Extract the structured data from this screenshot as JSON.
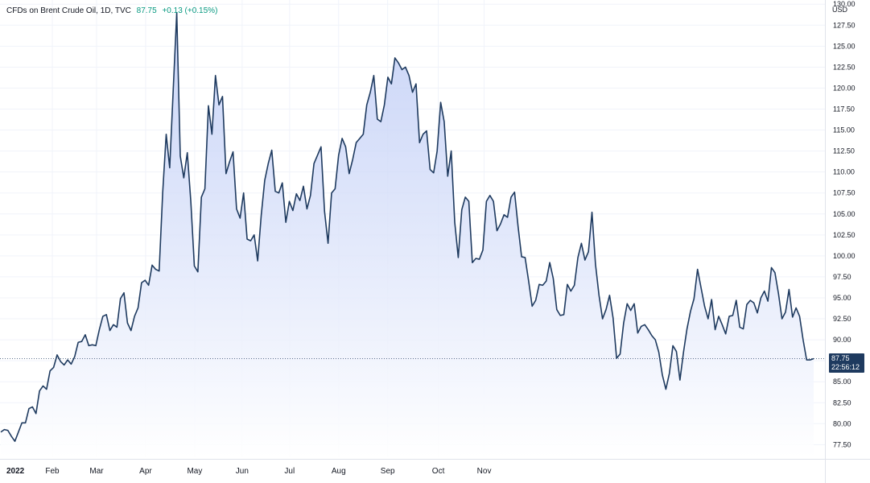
{
  "legend": {
    "symbol": "CFDs on Brent Crude Oil, 1D, TVC",
    "last": "87.75",
    "change": "+0.13 (+0.15%)"
  },
  "axis": {
    "currency": "USD",
    "y_ticks": [
      "77.50",
      "80.00",
      "82.50",
      "85.00",
      "87.50",
      "90.00",
      "92.50",
      "95.00",
      "97.50",
      "100.00",
      "102.50",
      "105.00",
      "107.50",
      "110.00",
      "112.50",
      "115.00",
      "117.50",
      "120.00",
      "122.50",
      "125.00",
      "127.50",
      "130.00"
    ],
    "x_labels": [
      "2022",
      "Feb",
      "Mar",
      "Apr",
      "May",
      "Jun",
      "Jul",
      "Aug",
      "Sep",
      "Oct",
      "Nov"
    ]
  },
  "price_tag": {
    "price": "87.75",
    "countdown": "22:56:12"
  },
  "colors": {
    "line": "#1e3a5f",
    "fill_top": "#b9c8f5",
    "fill_bottom": "#ffffff",
    "grid": "#f0f3fa",
    "tag": "#1e3a5f"
  },
  "chart_data": {
    "type": "area",
    "x_start": "2022-01-03",
    "x_end": "2022-11-18",
    "ylim": [
      76.0,
      130.5
    ],
    "grid": true,
    "last_value": 87.75,
    "series": [
      {
        "values": [
          79.0,
          79.3,
          79.2,
          78.5,
          77.9,
          79.0,
          80.1,
          80.1,
          81.8,
          82.0,
          81.2,
          83.9,
          84.5,
          84.1,
          86.3,
          86.7,
          88.2,
          87.4,
          87.0,
          87.6,
          87.1,
          88.0,
          89.7,
          89.8,
          90.6,
          89.3,
          89.4,
          89.3,
          91.2,
          92.8,
          93.0,
          91.1,
          91.8,
          91.5,
          94.9,
          95.6,
          92.0,
          91.1,
          92.8,
          93.8,
          96.8,
          97.1,
          96.5,
          98.9,
          98.4,
          98.2,
          107.5,
          114.5,
          110.5,
          119.8,
          129.0,
          111.9,
          109.3,
          112.3,
          106.5,
          98.8,
          98.1,
          107.0,
          108.0,
          117.9,
          114.5,
          121.5,
          118.0,
          119.0,
          109.8,
          111.2,
          112.4,
          105.6,
          104.5,
          107.5,
          102.0,
          101.8,
          102.5,
          99.4,
          104.8,
          109.0,
          111.0,
          112.6,
          107.7,
          107.5,
          108.7,
          104.0,
          106.5,
          105.4,
          107.4,
          106.6,
          108.3,
          105.6,
          107.2,
          111.0,
          112.0,
          113.0,
          105.3,
          101.5,
          107.5,
          108.0,
          112.0,
          114.0,
          113.0,
          109.8,
          111.5,
          113.5,
          114.0,
          114.5,
          118.0,
          119.5,
          121.5,
          116.3,
          116.0,
          118.0,
          121.3,
          120.5,
          123.6,
          123.0,
          122.2,
          122.5,
          121.5,
          119.5,
          120.5,
          113.5,
          114.5,
          114.9,
          110.3,
          109.9,
          112.5,
          118.3,
          116.0,
          109.5,
          112.5,
          104.0,
          99.8,
          105.5,
          107.0,
          106.5,
          99.2,
          99.7,
          99.6,
          100.7,
          106.5,
          107.2,
          106.5,
          103.0,
          103.8,
          104.9,
          104.6,
          107.0,
          107.6,
          103.5,
          99.9,
          99.8,
          97.0,
          94.0,
          94.7,
          96.6,
          96.5,
          97.0,
          99.2,
          97.3,
          93.6,
          92.9,
          93.0,
          96.6,
          95.8,
          96.5,
          99.8,
          101.5,
          99.5,
          100.5,
          105.2,
          99.0,
          95.3,
          92.5,
          93.6,
          95.3,
          92.6,
          87.8,
          88.3,
          92.0,
          94.3,
          93.5,
          94.3,
          90.8,
          91.6,
          91.8,
          91.2,
          90.5,
          90.0,
          88.5,
          85.8,
          84.1,
          86.0,
          89.3,
          88.6,
          85.2,
          88.5,
          91.3,
          93.4,
          94.9,
          98.4,
          96.2,
          94.0,
          92.5,
          94.8,
          91.2,
          92.8,
          91.8,
          90.7,
          92.8,
          92.9,
          94.7,
          91.5,
          91.3,
          94.2,
          94.7,
          94.4,
          93.2,
          95.0,
          95.8,
          94.6,
          98.6,
          98.0,
          95.5,
          92.5,
          93.3,
          96.0,
          92.7,
          93.8,
          92.8,
          90.0,
          87.6,
          87.6,
          87.75
        ]
      }
    ]
  }
}
